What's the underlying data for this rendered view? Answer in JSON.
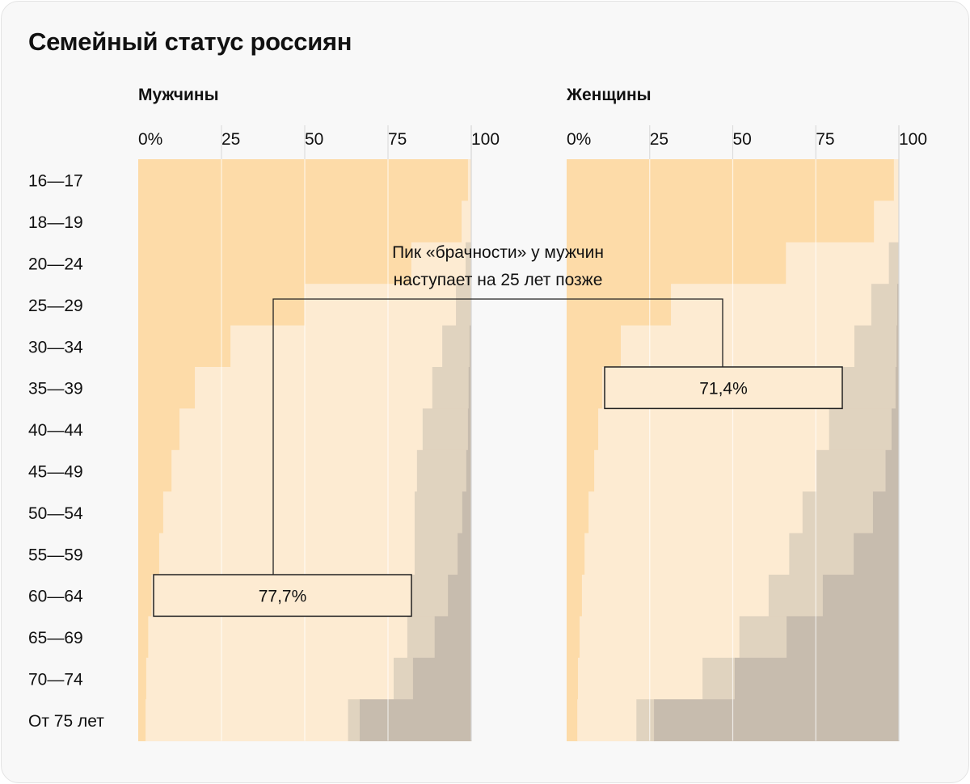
{
  "title": "Семейный статус россиян",
  "chart_data": {
    "type": "bar",
    "stacked": true,
    "orientation": "horizontal",
    "title": "Семейный статус россиян",
    "categories": [
      "16—17",
      "18—19",
      "20—24",
      "25—29",
      "30—34",
      "35—39",
      "40—44",
      "45—49",
      "50—54",
      "55—59",
      "60—64",
      "65—69",
      "70—74",
      "От 75 лет"
    ],
    "xlim": [
      0,
      100
    ],
    "ticks": [
      "0%",
      "25",
      "50",
      "75",
      "100"
    ],
    "grid": true,
    "colors": [
      "#fddba8",
      "#fdebd2",
      "#e0d3bf",
      "#c7bcae"
    ],
    "panels": [
      {
        "title": "Мужчины",
        "series": [
          {
            "key": "s1",
            "values": [
              99,
              97.1,
              82,
              50,
              27.7,
              17,
              12.4,
              10,
              7.5,
              6.3,
              4,
              3,
              2.4,
              2.2
            ]
          },
          {
            "key": "s2",
            "values": [
              1,
              2.9,
              16.3,
              45.4,
              63.6,
              71.3,
              73,
              73.7,
              75.5,
              76.7,
              77.7,
              77.8,
              74.3,
              60.8
            ]
          },
          {
            "key": "s3",
            "values": [
              0,
              0,
              1.7,
              4.6,
              8.2,
              10.9,
              13.6,
              14.8,
              14.3,
              12.9,
              11.3,
              8.2,
              5.8,
              3.5
            ]
          },
          {
            "key": "s4",
            "values": [
              0,
              0,
              0,
              0,
              0.5,
              0.8,
              1,
              1.5,
              2.7,
              4.1,
              7,
              11,
              17.5,
              33.5
            ]
          }
        ],
        "highlight": {
          "row": 10,
          "label": "77,7%"
        }
      },
      {
        "title": "Женщины",
        "series": [
          {
            "key": "s1",
            "values": [
              98.5,
              92.5,
              66,
              31.4,
              16.3,
              10.7,
              9.5,
              8.3,
              6.6,
              5.4,
              4.6,
              3.9,
              3.4,
              3.2
            ]
          },
          {
            "key": "s2",
            "values": [
              1.5,
              7.5,
              31,
              60.3,
              70.3,
              71.4,
              69.5,
              66.9,
              64.4,
              61.6,
              56.2,
              48.1,
              37.5,
              17.8
            ]
          },
          {
            "key": "s3",
            "values": [
              0,
              0,
              3,
              7.8,
              12.7,
              16.9,
              18.8,
              20.8,
              21.2,
              19.4,
              16.3,
              14.2,
              9.7,
              5.3
            ]
          },
          {
            "key": "s4",
            "values": [
              0,
              0,
              0,
              0.5,
              0.7,
              1,
              2.2,
              4,
              7.8,
              13.6,
              22.9,
              33.8,
              49.4,
              73.7
            ]
          }
        ],
        "highlight": {
          "row": 5,
          "label": "71,4%"
        }
      }
    ],
    "annotation": [
      "Пик «брачности» у мужчин",
      "наступает на 25 лет позже"
    ]
  }
}
